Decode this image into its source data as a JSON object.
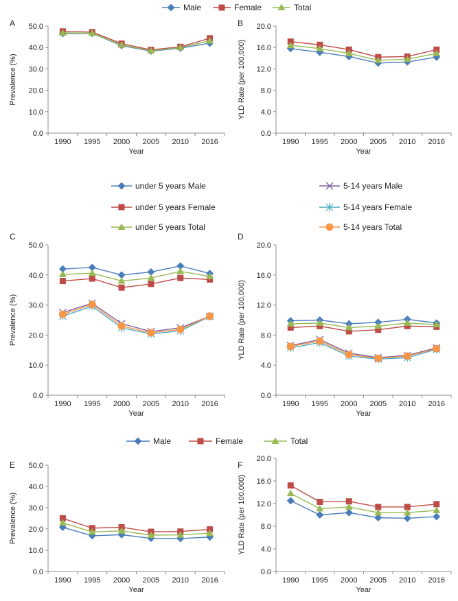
{
  "legends": {
    "top": [
      "Male",
      "Female",
      "Total"
    ],
    "middle_left": [
      "under 5 years Male",
      "under 5 years Female",
      "under 5 years Total"
    ],
    "middle_right": [
      "5-14 years Male",
      "5-14 years Female",
      "5-14 years Total"
    ],
    "bottom": [
      "Male",
      "Female",
      "Total"
    ]
  },
  "colors": {
    "male": "#4a7ebb",
    "female": "#be4b48",
    "total": "#98b954",
    "child_male": "#7d60a0",
    "child_female": "#4bacc6",
    "child_total": "#f79646",
    "axis": "#8c8c8c"
  },
  "chart_data": [
    {
      "panel": "A",
      "type": "line",
      "xlabel": "Year",
      "ylabel": "Prevalence (%)",
      "ylim": [
        0,
        50
      ],
      "yticks": [
        "0.0",
        "10.0",
        "20.0",
        "30.0",
        "40.0",
        "50.0"
      ],
      "categories": [
        "1990",
        "1995",
        "2000",
        "2005",
        "2010",
        "2016"
      ],
      "series": [
        {
          "name": "Male",
          "values": [
            46.5,
            46.6,
            40.9,
            38.3,
            39.7,
            42.0
          ]
        },
        {
          "name": "Female",
          "values": [
            47.5,
            47.2,
            41.8,
            38.9,
            40.3,
            44.3
          ]
        },
        {
          "name": "Total",
          "values": [
            46.8,
            46.7,
            41.2,
            38.5,
            40.0,
            43.1
          ]
        }
      ]
    },
    {
      "panel": "B",
      "type": "line",
      "xlabel": "Year",
      "ylabel": "YLD Rate (per 100,000)",
      "ylim": [
        0,
        20
      ],
      "yticks": [
        "0.0",
        "4.0",
        "8.0",
        "12.0",
        "16.0",
        "20.0"
      ],
      "categories": [
        "1990",
        "1995",
        "2000",
        "2005",
        "2010",
        "2016"
      ],
      "series": [
        {
          "name": "Male",
          "values": [
            15.8,
            15.1,
            14.3,
            13.1,
            13.3,
            14.2
          ]
        },
        {
          "name": "Female",
          "values": [
            17.1,
            16.5,
            15.6,
            14.2,
            14.3,
            15.6
          ]
        },
        {
          "name": "Total",
          "values": [
            16.4,
            15.8,
            14.9,
            13.6,
            13.8,
            14.9
          ]
        }
      ]
    },
    {
      "panel": "C",
      "type": "line",
      "xlabel": "Year",
      "ylabel": "Prevalence (%)",
      "ylim": [
        0,
        50
      ],
      "yticks": [
        "0.0",
        "10.0",
        "20.0",
        "30.0",
        "40.0",
        "50.0"
      ],
      "categories": [
        "1990",
        "1995",
        "2000",
        "2005",
        "2010",
        "2016"
      ],
      "series": [
        {
          "name": "under 5 years Male",
          "values": [
            42.0,
            42.5,
            40.0,
            41.0,
            43.0,
            40.5
          ]
        },
        {
          "name": "under 5 years Female",
          "values": [
            38.0,
            38.8,
            35.8,
            37.0,
            39.0,
            38.5
          ]
        },
        {
          "name": "under 5 years Total",
          "values": [
            40.2,
            40.6,
            38.0,
            39.0,
            41.2,
            39.5
          ]
        },
        {
          "name": "5-14 years Male",
          "values": [
            27.5,
            30.6,
            23.8,
            21.2,
            22.4,
            26.3
          ]
        },
        {
          "name": "5-14 years Female",
          "values": [
            26.3,
            29.6,
            22.4,
            20.4,
            21.4,
            26.2
          ]
        },
        {
          "name": "5-14 years Total",
          "values": [
            26.9,
            30.2,
            23.0,
            20.8,
            21.9,
            26.3
          ]
        }
      ]
    },
    {
      "panel": "D",
      "type": "line",
      "xlabel": "Year",
      "ylabel": "YLD Rate (per 100,000)",
      "ylim": [
        0,
        20
      ],
      "yticks": [
        "0.0",
        "4.0",
        "8.0",
        "12.0",
        "16.0",
        "20.0"
      ],
      "categories": [
        "1990",
        "1995",
        "2000",
        "2005",
        "2010",
        "2016"
      ],
      "series": [
        {
          "name": "under 5 years Male",
          "values": [
            9.9,
            10.0,
            9.5,
            9.7,
            10.1,
            9.6
          ]
        },
        {
          "name": "under 5 years Female",
          "values": [
            9.0,
            9.2,
            8.5,
            8.7,
            9.2,
            9.1
          ]
        },
        {
          "name": "under 5 years Total",
          "values": [
            9.5,
            9.6,
            9.0,
            9.2,
            9.6,
            9.4
          ]
        },
        {
          "name": "5-14 years Male",
          "values": [
            6.6,
            7.4,
            5.6,
            5.0,
            5.3,
            6.3
          ]
        },
        {
          "name": "5-14 years Female",
          "values": [
            6.3,
            7.0,
            5.2,
            4.8,
            5.0,
            6.1
          ]
        },
        {
          "name": "5-14 years Total",
          "values": [
            6.5,
            7.2,
            5.4,
            4.9,
            5.2,
            6.2
          ]
        }
      ]
    },
    {
      "panel": "E",
      "type": "line",
      "xlabel": "Year",
      "ylabel": "Prevalence (%)",
      "ylim": [
        0,
        50
      ],
      "yticks": [
        "0.0",
        "10.0",
        "20.0",
        "30.0",
        "40.0",
        "50.0"
      ],
      "categories": [
        "1990",
        "1995",
        "2000",
        "2005",
        "2010",
        "2016"
      ],
      "series": [
        {
          "name": "Male",
          "values": [
            20.8,
            16.8,
            17.3,
            15.6,
            15.5,
            16.2
          ]
        },
        {
          "name": "Female",
          "values": [
            25.0,
            20.4,
            20.8,
            18.7,
            18.8,
            19.8
          ]
        },
        {
          "name": "Total",
          "values": [
            22.9,
            18.6,
            19.1,
            17.1,
            17.2,
            18.0
          ]
        }
      ]
    },
    {
      "panel": "F",
      "type": "line",
      "xlabel": "Year",
      "ylabel": "YLD Rate (per 100,000)",
      "ylim": [
        0,
        20
      ],
      "yticks": [
        "0.0",
        "4.0",
        "8.0",
        "12.0",
        "16.0",
        "20.0"
      ],
      "categories": [
        "1990",
        "1995",
        "2000",
        "2005",
        "2010",
        "2016"
      ],
      "series": [
        {
          "name": "Male",
          "values": [
            12.5,
            10.0,
            10.4,
            9.5,
            9.4,
            9.7
          ]
        },
        {
          "name": "Female",
          "values": [
            15.2,
            12.3,
            12.4,
            11.4,
            11.4,
            11.9
          ]
        },
        {
          "name": "Total",
          "values": [
            13.8,
            11.1,
            11.4,
            10.4,
            10.4,
            10.8
          ]
        }
      ]
    }
  ]
}
